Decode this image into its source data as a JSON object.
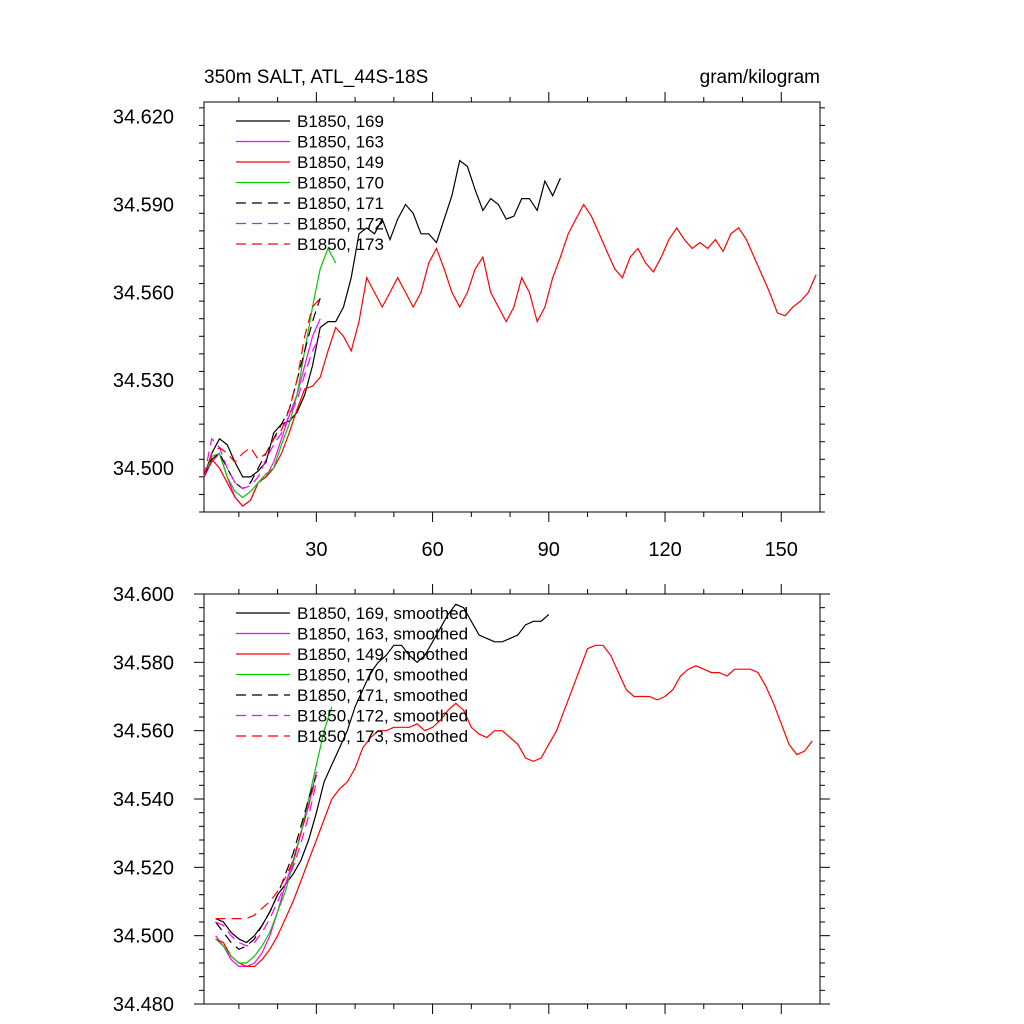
{
  "chart_data": [
    {
      "type": "line",
      "title": "350m SALT, ATL_44S-18S",
      "units": "gram/kilogram",
      "xlim": [
        1,
        160
      ],
      "ylim": [
        34.485,
        34.625
      ],
      "yticks": [
        34.5,
        34.53,
        34.56,
        34.59,
        34.62
      ],
      "ytick_labels": [
        "34.500",
        "34.530",
        "34.560",
        "34.590",
        "34.620"
      ],
      "xticks": [
        30,
        60,
        90,
        120,
        150
      ],
      "xtick_labels": [
        "30",
        "60",
        "90",
        "120",
        "150"
      ],
      "grid": false,
      "legend_position": "top-left",
      "series": [
        {
          "name": "B1850, 169",
          "color": "#000000",
          "dash": "solid",
          "x": [
            1,
            3,
            5,
            7,
            9,
            11,
            13,
            15,
            17,
            19,
            21,
            23,
            25,
            27,
            29,
            31,
            33,
            35,
            37,
            39,
            41,
            43,
            45,
            47,
            49,
            51,
            53,
            55,
            57,
            59,
            61,
            63,
            65,
            67,
            69,
            71,
            73,
            75,
            77,
            79,
            81,
            83,
            85,
            87,
            89,
            91,
            93
          ],
          "y": [
            34.497,
            34.505,
            34.51,
            34.508,
            34.502,
            34.497,
            34.497,
            34.499,
            34.502,
            34.512,
            34.515,
            34.516,
            34.519,
            34.525,
            34.535,
            34.548,
            34.55,
            34.55,
            34.555,
            34.565,
            34.58,
            34.582,
            34.58,
            34.585,
            34.578,
            34.585,
            34.59,
            34.587,
            34.58,
            34.58,
            34.577,
            34.585,
            34.593,
            34.605,
            34.603,
            34.595,
            34.588,
            34.592,
            34.59,
            34.585,
            34.586,
            34.592,
            34.592,
            34.588,
            34.598,
            34.593,
            34.599
          ]
        },
        {
          "name": "B1850, 163",
          "color": "#ff00ff",
          "dash": "solid",
          "x": [
            1,
            3,
            5,
            7,
            9,
            11,
            13,
            15,
            17,
            19,
            21,
            23,
            25,
            27,
            29,
            31
          ],
          "y": [
            34.497,
            34.502,
            34.505,
            34.497,
            34.49,
            34.487,
            34.489,
            34.495,
            34.497,
            34.502,
            34.51,
            34.518,
            34.525,
            34.535,
            34.545,
            34.551
          ]
        },
        {
          "name": "B1850, 149",
          "color": "#ff0000",
          "dash": "solid",
          "x": [
            1,
            3,
            5,
            7,
            9,
            11,
            13,
            15,
            17,
            19,
            21,
            23,
            25,
            27,
            29,
            31,
            33,
            35,
            37,
            39,
            41,
            43,
            45,
            47,
            49,
            51,
            53,
            55,
            57,
            59,
            61,
            63,
            65,
            67,
            69,
            71,
            73,
            75,
            77,
            79,
            81,
            83,
            85,
            87,
            89,
            91,
            93,
            95,
            97,
            99,
            101,
            103,
            105,
            107,
            109,
            111,
            113,
            115,
            117,
            119,
            121,
            123,
            125,
            127,
            129,
            131,
            133,
            135,
            137,
            139,
            141,
            143,
            145,
            147,
            149,
            151,
            153,
            155,
            157,
            159
          ],
          "y": [
            34.497,
            34.503,
            34.5,
            34.495,
            34.49,
            34.487,
            34.489,
            34.495,
            34.497,
            34.5,
            34.505,
            34.512,
            34.52,
            34.527,
            34.528,
            34.531,
            34.54,
            34.548,
            34.545,
            34.54,
            34.55,
            34.565,
            34.56,
            34.555,
            34.56,
            34.565,
            34.56,
            34.555,
            34.56,
            34.57,
            34.575,
            34.568,
            34.56,
            34.555,
            34.56,
            34.568,
            34.572,
            34.56,
            34.555,
            34.55,
            34.555,
            34.565,
            34.56,
            34.55,
            34.555,
            34.565,
            34.572,
            34.58,
            34.585,
            34.59,
            34.586,
            34.58,
            34.574,
            34.568,
            34.565,
            34.572,
            34.575,
            34.57,
            34.567,
            34.572,
            34.578,
            34.582,
            34.578,
            34.575,
            34.577,
            34.575,
            34.578,
            34.574,
            34.58,
            34.582,
            34.578,
            34.572,
            34.566,
            34.56,
            34.553,
            34.552,
            34.555,
            34.557,
            34.56,
            34.566
          ]
        },
        {
          "name": "B1850, 170",
          "color": "#00cc00",
          "dash": "solid",
          "x": [
            1,
            3,
            5,
            7,
            9,
            11,
            13,
            15,
            17,
            19,
            21,
            23,
            25,
            27,
            29,
            31,
            33,
            35
          ],
          "y": [
            34.497,
            34.504,
            34.505,
            34.497,
            34.492,
            34.49,
            34.492,
            34.495,
            34.498,
            34.5,
            34.508,
            34.515,
            34.525,
            34.54,
            34.555,
            34.568,
            34.575,
            34.57
          ]
        },
        {
          "name": "B1850, 171",
          "color": "#000000",
          "dash": "dashed",
          "x": [
            1,
            3,
            5,
            7,
            9,
            11,
            13,
            15,
            17,
            19,
            21,
            23,
            25,
            27,
            29,
            31
          ],
          "y": [
            34.497,
            34.503,
            34.505,
            34.5,
            34.495,
            34.493,
            34.495,
            34.5,
            34.505,
            34.51,
            34.515,
            34.52,
            34.53,
            34.54,
            34.55,
            34.558
          ]
        },
        {
          "name": "B1850, 172",
          "color": "#ff00ff",
          "dash": "dashed",
          "x": [
            1,
            3,
            5,
            7,
            9,
            11,
            13,
            15,
            17,
            19,
            21,
            23,
            25,
            27,
            29,
            31
          ],
          "y": [
            34.497,
            34.51,
            34.507,
            34.5,
            34.495,
            34.493,
            34.494,
            34.497,
            34.503,
            34.508,
            34.512,
            34.518,
            34.523,
            34.532,
            34.54,
            34.545
          ]
        },
        {
          "name": "B1850, 173",
          "color": "#ff0000",
          "dash": "dashed",
          "x": [
            1,
            3,
            5,
            7,
            9,
            11,
            13,
            15,
            17,
            19,
            21,
            23,
            25,
            27,
            29,
            31
          ],
          "y": [
            34.497,
            34.505,
            34.507,
            34.505,
            34.502,
            34.505,
            34.507,
            34.503,
            34.505,
            34.51,
            34.513,
            34.52,
            34.53,
            34.545,
            34.555,
            34.558
          ]
        }
      ]
    },
    {
      "type": "line",
      "xlim": [
        1,
        160
      ],
      "ylim": [
        34.48,
        34.6
      ],
      "yticks": [
        34.48,
        34.5,
        34.52,
        34.54,
        34.56,
        34.58,
        34.6
      ],
      "ytick_labels": [
        "34.480",
        "34.500",
        "34.520",
        "34.540",
        "34.560",
        "34.580",
        "34.600"
      ],
      "xticks": [
        30,
        60,
        90,
        120,
        150
      ],
      "grid": false,
      "legend_position": "top-left",
      "series": [
        {
          "name": "B1850, 169, smoothed",
          "color": "#000000",
          "dash": "solid",
          "x": [
            4,
            6,
            8,
            10,
            12,
            14,
            16,
            18,
            20,
            22,
            24,
            26,
            28,
            30,
            32,
            34,
            36,
            38,
            40,
            42,
            44,
            46,
            48,
            50,
            52,
            54,
            56,
            58,
            60,
            62,
            64,
            66,
            68,
            70,
            72,
            74,
            76,
            78,
            80,
            82,
            84,
            86,
            88,
            90
          ],
          "y": [
            34.505,
            34.504,
            34.501,
            34.499,
            34.498,
            34.5,
            34.503,
            34.507,
            34.512,
            34.515,
            34.518,
            34.522,
            34.528,
            34.536,
            34.545,
            34.55,
            34.555,
            34.56,
            34.567,
            34.572,
            34.577,
            34.58,
            34.582,
            34.585,
            34.585,
            34.582,
            34.58,
            34.582,
            34.586,
            34.59,
            34.594,
            34.597,
            34.596,
            34.592,
            34.588,
            34.587,
            34.586,
            34.586,
            34.587,
            34.588,
            34.591,
            34.592,
            34.592,
            34.594
          ]
        },
        {
          "name": "B1850, 163, smoothed",
          "color": "#ff00ff",
          "dash": "solid",
          "x": [
            4,
            6,
            8,
            10,
            12,
            14,
            16,
            18,
            20,
            22,
            24,
            26,
            28,
            30
          ],
          "y": [
            34.5,
            34.497,
            34.493,
            34.491,
            34.491,
            34.492,
            34.495,
            34.5,
            34.507,
            34.515,
            34.522,
            34.53,
            34.538,
            34.548
          ]
        },
        {
          "name": "B1850, 149, smoothed",
          "color": "#ff0000",
          "dash": "solid",
          "x": [
            4,
            6,
            8,
            10,
            12,
            14,
            16,
            18,
            20,
            22,
            24,
            26,
            28,
            30,
            32,
            34,
            36,
            38,
            40,
            42,
            44,
            46,
            48,
            50,
            52,
            54,
            56,
            58,
            60,
            62,
            64,
            66,
            68,
            70,
            72,
            74,
            76,
            78,
            80,
            82,
            84,
            86,
            88,
            90,
            92,
            94,
            96,
            98,
            100,
            102,
            104,
            106,
            108,
            110,
            112,
            114,
            116,
            118,
            120,
            122,
            124,
            126,
            128,
            130,
            132,
            134,
            136,
            138,
            140,
            142,
            144,
            146,
            148,
            150,
            152,
            154,
            156,
            158
          ],
          "y": [
            34.499,
            34.498,
            34.494,
            34.492,
            34.491,
            34.491,
            34.493,
            34.496,
            34.5,
            34.505,
            34.51,
            34.516,
            34.522,
            34.528,
            34.534,
            34.54,
            34.543,
            34.545,
            34.549,
            34.555,
            34.558,
            34.56,
            34.56,
            34.561,
            34.561,
            34.561,
            34.562,
            34.56,
            34.561,
            34.563,
            34.566,
            34.568,
            34.566,
            34.561,
            34.559,
            34.558,
            34.56,
            34.56,
            34.558,
            34.556,
            34.552,
            34.551,
            34.552,
            34.556,
            34.56,
            34.566,
            34.572,
            34.578,
            34.584,
            34.585,
            34.585,
            34.582,
            34.577,
            34.572,
            34.57,
            34.57,
            34.57,
            34.569,
            34.57,
            34.572,
            34.576,
            34.578,
            34.579,
            34.578,
            34.577,
            34.577,
            34.576,
            34.578,
            34.578,
            34.578,
            34.577,
            34.573,
            34.568,
            34.562,
            34.556,
            34.553,
            34.554,
            34.557
          ]
        },
        {
          "name": "B1850, 170, smoothed",
          "color": "#00cc00",
          "dash": "solid",
          "x": [
            4,
            6,
            8,
            10,
            12,
            14,
            16,
            18,
            20,
            22,
            24,
            26,
            28,
            30,
            32,
            34
          ],
          "y": [
            34.499,
            34.497,
            34.494,
            34.492,
            34.492,
            34.494,
            34.497,
            34.501,
            34.507,
            34.513,
            34.521,
            34.53,
            34.54,
            34.55,
            34.56,
            34.567
          ]
        },
        {
          "name": "B1850, 171, smoothed",
          "color": "#000000",
          "dash": "dashed",
          "x": [
            4,
            6,
            8,
            10,
            12,
            14,
            16,
            18,
            20,
            22,
            24,
            26,
            28,
            30
          ],
          "y": [
            34.504,
            34.501,
            34.498,
            34.496,
            34.497,
            34.499,
            34.503,
            34.507,
            34.512,
            34.518,
            34.524,
            34.532,
            34.54,
            34.547
          ]
        },
        {
          "name": "B1850, 172, smoothed",
          "color": "#ff00ff",
          "dash": "dashed",
          "x": [
            4,
            6,
            8,
            10,
            12,
            14,
            16,
            18,
            20,
            22,
            24,
            26,
            28,
            30
          ],
          "y": [
            34.504,
            34.503,
            34.5,
            34.498,
            34.497,
            34.498,
            34.501,
            34.505,
            34.51,
            34.515,
            34.52,
            34.527,
            34.535,
            34.545
          ]
        },
        {
          "name": "B1850, 173, smoothed",
          "color": "#ff0000",
          "dash": "dashed",
          "x": [
            4,
            6,
            8,
            10,
            12,
            14,
            16,
            18,
            20,
            22,
            24,
            26,
            28,
            30
          ],
          "y": [
            34.505,
            34.505,
            34.505,
            34.505,
            34.505,
            34.506,
            34.508,
            34.51,
            34.513,
            34.517,
            34.522,
            34.53,
            34.538,
            34.547
          ]
        }
      ]
    }
  ]
}
